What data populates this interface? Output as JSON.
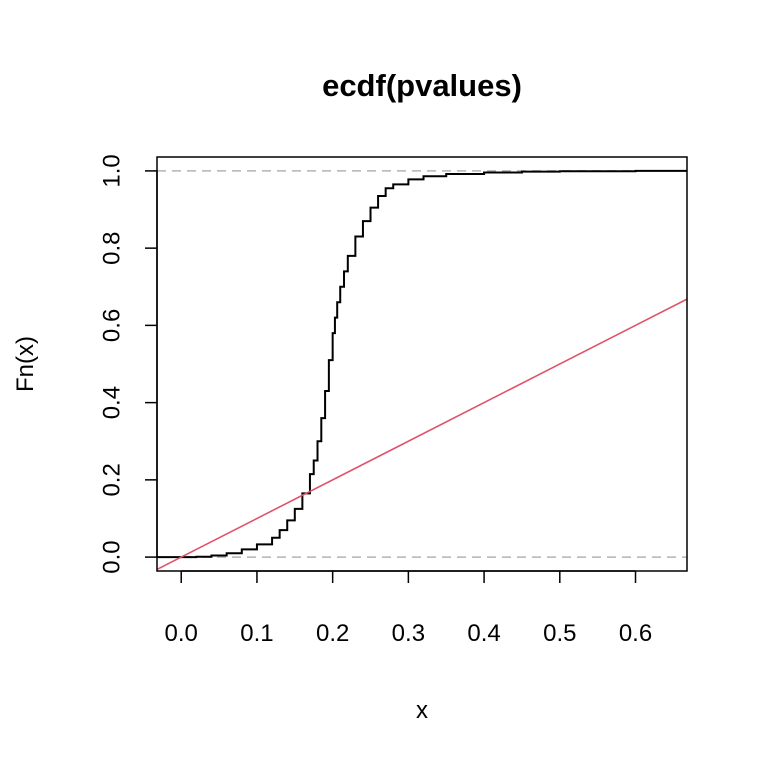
{
  "chart_data": {
    "type": "line",
    "title": "ecdf(pvalues)",
    "xlabel": "x",
    "ylabel": "Fn(x)",
    "xlim": [
      -0.032,
      0.668
    ],
    "ylim": [
      -0.036,
      1.036
    ],
    "x_ticks": [
      0.0,
      0.1,
      0.2,
      0.3,
      0.4,
      0.5,
      0.6
    ],
    "x_tick_labels": [
      "0.0",
      "0.1",
      "0.2",
      "0.3",
      "0.4",
      "0.5",
      "0.6"
    ],
    "y_ticks": [
      0.0,
      0.2,
      0.4,
      0.6,
      0.8,
      1.0
    ],
    "y_tick_labels": [
      "0.0",
      "0.2",
      "0.4",
      "0.6",
      "0.8",
      "1.0"
    ],
    "grid": false,
    "reference_lines": {
      "y": [
        0,
        1
      ],
      "color": "#b3b3b3",
      "style": "dashed"
    },
    "series": [
      {
        "style": "step",
        "color": "#000000",
        "x": [
          -0.032,
          0.02,
          0.04,
          0.06,
          0.08,
          0.1,
          0.12,
          0.13,
          0.14,
          0.15,
          0.16,
          0.17,
          0.175,
          0.18,
          0.185,
          0.19,
          0.195,
          0.2,
          0.203,
          0.206,
          0.21,
          0.215,
          0.22,
          0.23,
          0.24,
          0.25,
          0.26,
          0.27,
          0.28,
          0.3,
          0.32,
          0.35,
          0.4,
          0.45,
          0.5,
          0.6,
          0.668
        ],
        "y": [
          0.0,
          0.001,
          0.004,
          0.01,
          0.02,
          0.033,
          0.05,
          0.07,
          0.095,
          0.125,
          0.165,
          0.215,
          0.25,
          0.3,
          0.36,
          0.43,
          0.51,
          0.58,
          0.62,
          0.66,
          0.7,
          0.74,
          0.78,
          0.83,
          0.87,
          0.905,
          0.935,
          0.955,
          0.965,
          0.978,
          0.986,
          0.992,
          0.996,
          0.998,
          0.999,
          1.0,
          1.0
        ]
      },
      {
        "style": "line",
        "color": "#df536b",
        "x": [
          -0.032,
          0.668
        ],
        "y": [
          -0.032,
          0.668
        ]
      }
    ]
  }
}
